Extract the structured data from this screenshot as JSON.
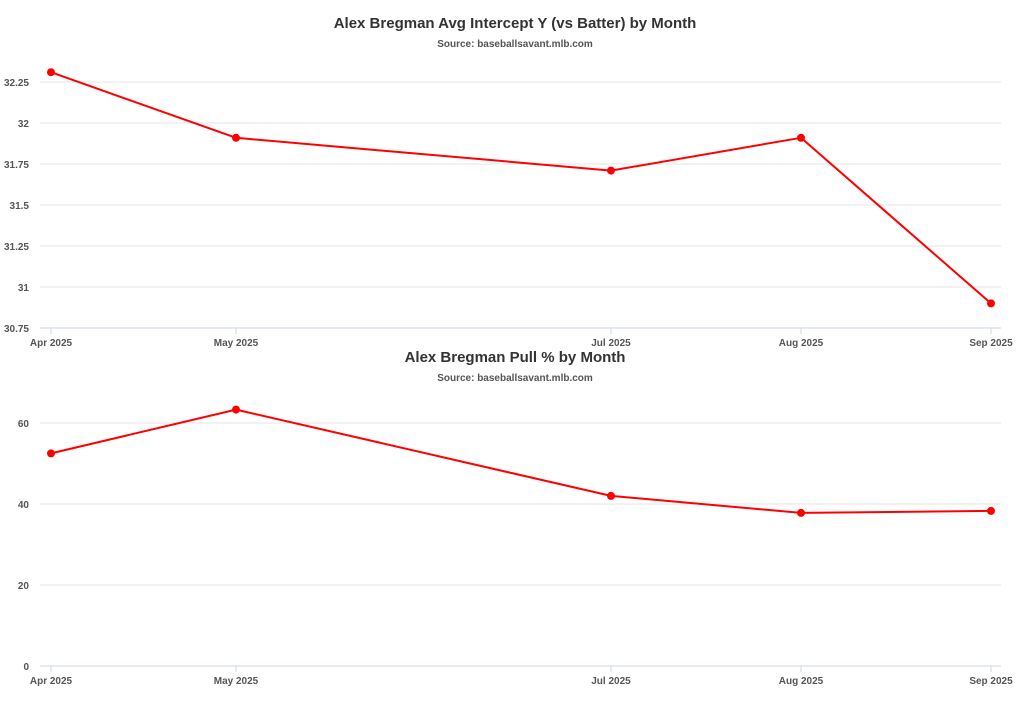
{
  "colors": {
    "line": "#ff0000",
    "grid": "#e6e6e6",
    "axis": "#ccd6eb"
  },
  "chart_data": [
    {
      "type": "line",
      "title": "Alex Bregman Avg Intercept Y (vs Batter) by Month",
      "subtitle": "Source: baseballsavant.mlb.com",
      "x": [
        "2025-04",
        "2025-05",
        "2025-07",
        "2025-08",
        "2025-09"
      ],
      "x_tick_labels": [
        "Apr 2025",
        "May 2025",
        "Jul 2025",
        "Aug 2025",
        "Sep 2025"
      ],
      "series": [
        {
          "values": [
            32.31,
            31.91,
            31.71,
            31.91,
            30.9
          ]
        }
      ],
      "y_ticks": [
        "30.75",
        "31",
        "31.25",
        "31.5",
        "31.75",
        "32",
        "32.25"
      ],
      "ylim": [
        30.75,
        32.25
      ],
      "grid": true,
      "legend": "none"
    },
    {
      "type": "line",
      "title": "Alex Bregman Pull % by Month",
      "subtitle": "Source: baseballsavant.mlb.com",
      "x": [
        "2025-04",
        "2025-05",
        "2025-07",
        "2025-08",
        "2025-09"
      ],
      "x_tick_labels": [
        "Apr 2025",
        "May 2025",
        "Jul 2025",
        "Aug 2025",
        "Sep 2025"
      ],
      "series": [
        {
          "values": [
            52.5,
            63.3,
            42.0,
            37.8,
            38.3
          ]
        }
      ],
      "y_ticks": [
        "0",
        "20",
        "40",
        "60"
      ],
      "ylim": [
        0,
        60
      ],
      "grid": true,
      "legend": "none"
    }
  ]
}
